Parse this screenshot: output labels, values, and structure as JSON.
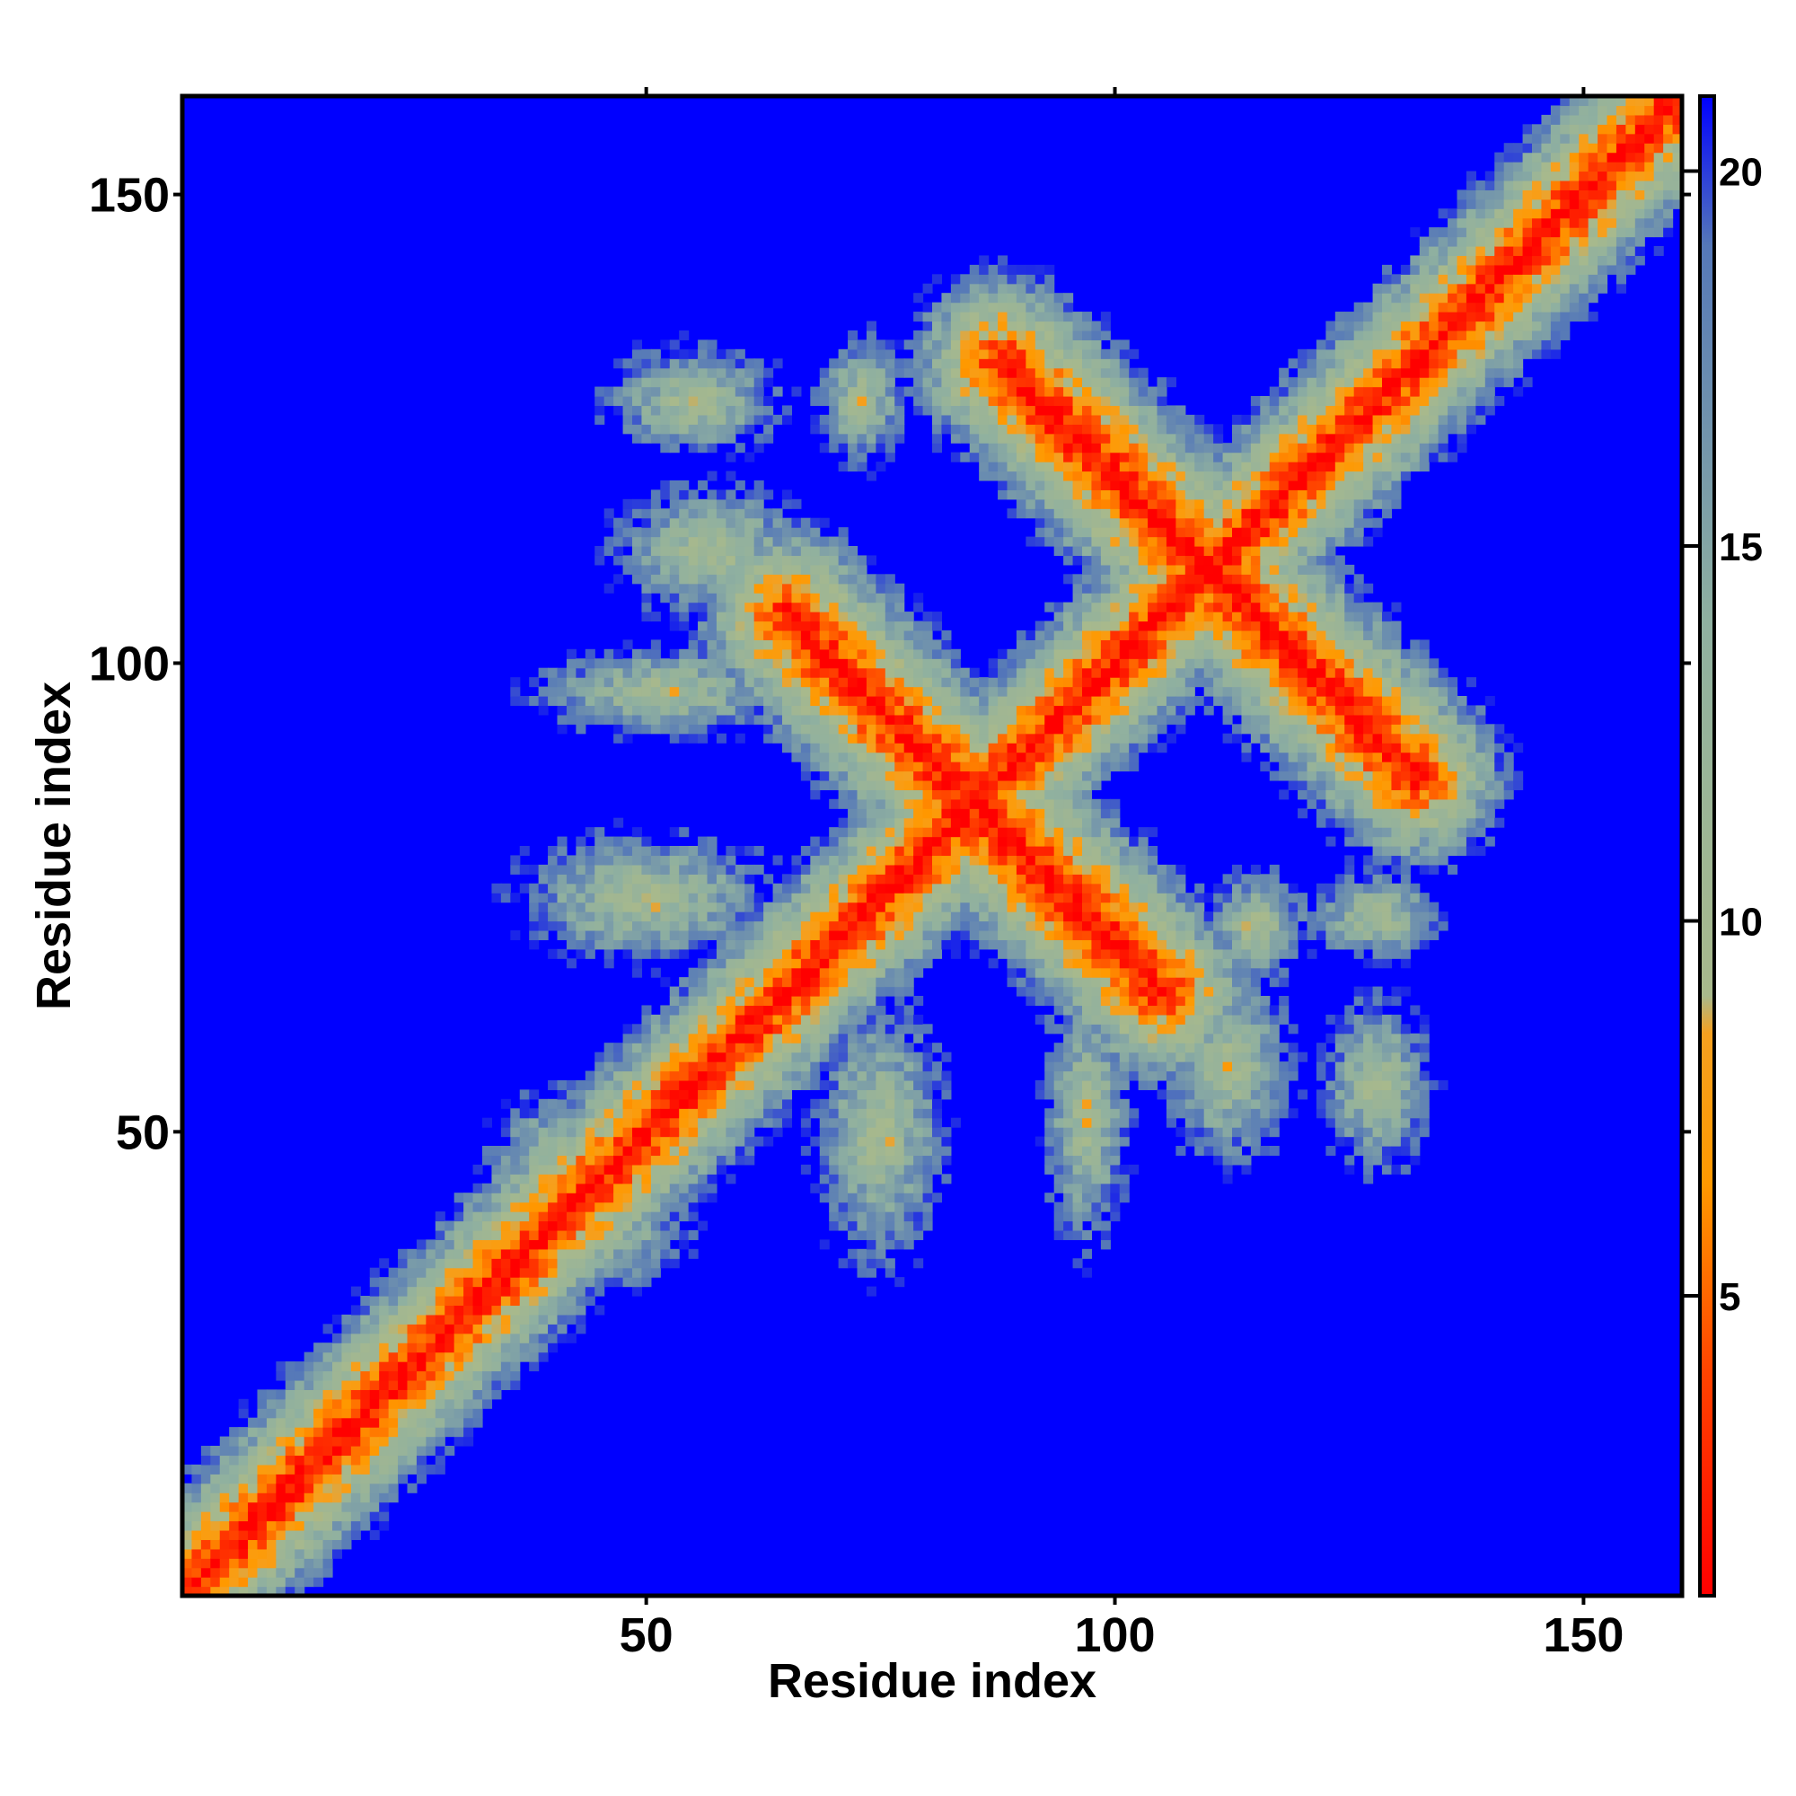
{
  "chart_data": {
    "type": "heatmap",
    "title": "",
    "xlabel": "Residue index",
    "ylabel": "Residue index",
    "xlim": [
      1,
      160
    ],
    "ylim": [
      1,
      160
    ],
    "x_ticks": [
      50,
      100,
      150
    ],
    "y_ticks": [
      50,
      100,
      150
    ],
    "x_tick_labels": [
      "50",
      "100",
      "150"
    ],
    "y_tick_labels": [
      "50",
      "100",
      "150"
    ],
    "n_residues": 160,
    "colorbar": {
      "range": [
        1,
        21
      ],
      "ticks": [
        5,
        10,
        15,
        20
      ],
      "tick_labels": [
        "5",
        "10",
        "15",
        "20"
      ],
      "colors": [
        {
          "value": 1,
          "color": "#ff0000"
        },
        {
          "value": 4,
          "color": "#ff4400"
        },
        {
          "value": 6.5,
          "color": "#ff9900"
        },
        {
          "value": 8.5,
          "color": "#f5a020"
        },
        {
          "value": 9,
          "color": "#a8b98c"
        },
        {
          "value": 14,
          "color": "#8fb0a0"
        },
        {
          "value": 19,
          "color": "#5578b8"
        },
        {
          "value": 21,
          "color": "#0000ff"
        }
      ]
    },
    "background_color": "#0000ff",
    "structure_features": [
      {
        "kind": "main-diagonal",
        "from": [
          1,
          1
        ],
        "to": [
          160,
          160
        ],
        "width": 3
      },
      {
        "kind": "anti-diagonal",
        "from": [
          65,
          105
        ],
        "to": [
          105,
          65
        ],
        "width": 2
      },
      {
        "kind": "anti-diagonal",
        "from": [
          88,
          132
        ],
        "to": [
          132,
          88
        ],
        "width": 2
      },
      {
        "kind": "patch",
        "center": [
          55,
          128
        ],
        "spread": [
          8,
          5
        ]
      },
      {
        "kind": "patch",
        "center": [
          73,
          128
        ],
        "spread": [
          4,
          6
        ]
      },
      {
        "kind": "patch",
        "center": [
          57,
          112
        ],
        "spread": [
          9,
          6
        ]
      },
      {
        "kind": "patch",
        "center": [
          52,
          97
        ],
        "spread": [
          12,
          4
        ]
      },
      {
        "kind": "patch",
        "center": [
          50,
          75
        ],
        "spread": [
          12,
          6
        ]
      },
      {
        "kind": "patch",
        "center": [
          75,
          50
        ],
        "spread": [
          6,
          12
        ]
      },
      {
        "kind": "patch",
        "center": [
          97,
          52
        ],
        "spread": [
          4,
          12
        ]
      },
      {
        "kind": "patch",
        "center": [
          112,
          57
        ],
        "spread": [
          6,
          9
        ]
      },
      {
        "kind": "patch",
        "center": [
          128,
          55
        ],
        "spread": [
          5,
          8
        ]
      },
      {
        "kind": "patch",
        "center": [
          128,
          73
        ],
        "spread": [
          6,
          4
        ]
      },
      {
        "kind": "patch",
        "center": [
          115,
          72
        ],
        "spread": [
          5,
          5
        ]
      },
      {
        "kind": "patch",
        "center": [
          120,
          118
        ],
        "spread": [
          4,
          4
        ]
      },
      {
        "kind": "patch",
        "center": [
          105,
          107
        ],
        "spread": [
          4,
          4
        ]
      },
      {
        "kind": "patch",
        "center": [
          40,
          45
        ],
        "spread": [
          6,
          8
        ]
      },
      {
        "kind": "patch",
        "center": [
          45,
          40
        ],
        "spread": [
          8,
          6
        ]
      }
    ]
  }
}
